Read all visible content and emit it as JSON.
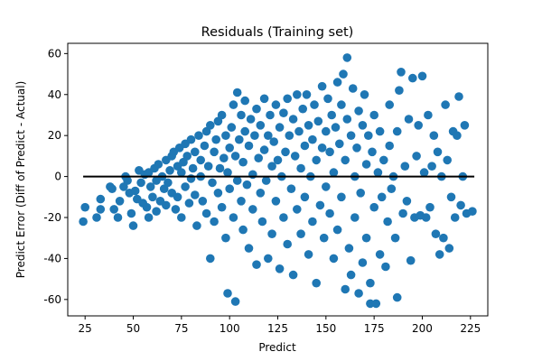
{
  "chart_data": {
    "type": "scatter",
    "title": "Residuals (Training set)",
    "xlabel": "Predict",
    "ylabel": "Predict Error (Diff of Predict - Actual)",
    "xlim": [
      16,
      234
    ],
    "ylim": [
      -68,
      65
    ],
    "xticks": [
      25,
      50,
      75,
      100,
      125,
      150,
      175,
      200,
      225
    ],
    "yticks": [
      -60,
      -40,
      -20,
      0,
      20,
      40,
      60
    ],
    "grid": false,
    "legend": "none",
    "marker_color": "#1f77b4",
    "reference_line": {
      "y": 0,
      "x_from": 24,
      "x_to": 227,
      "color": "#000000"
    },
    "series": [
      {
        "points": [
          [
            24,
            -22
          ],
          [
            25,
            -15
          ],
          [
            31,
            -20
          ],
          [
            33,
            -16
          ],
          [
            33,
            -11
          ],
          [
            38,
            -5
          ],
          [
            39,
            -6
          ],
          [
            40,
            -16
          ],
          [
            42,
            -20
          ],
          [
            43,
            -12
          ],
          [
            45,
            -5
          ],
          [
            46,
            0
          ],
          [
            47,
            -2
          ],
          [
            48,
            -8
          ],
          [
            49,
            -18
          ],
          [
            50,
            -24
          ],
          [
            51,
            -7
          ],
          [
            52,
            -11
          ],
          [
            53,
            3
          ],
          [
            54,
            -3
          ],
          [
            55,
            -13
          ],
          [
            56,
            1
          ],
          [
            57,
            -15
          ],
          [
            58,
            -20
          ],
          [
            58,
            2
          ],
          [
            59,
            -5
          ],
          [
            60,
            -10
          ],
          [
            61,
            4
          ],
          [
            62,
            -17
          ],
          [
            62,
            -2
          ],
          [
            63,
            6
          ],
          [
            64,
            -12
          ],
          [
            65,
            0
          ],
          [
            66,
            -6
          ],
          [
            67,
            8
          ],
          [
            67,
            -14
          ],
          [
            68,
            -3
          ],
          [
            69,
            3
          ],
          [
            70,
            10
          ],
          [
            70,
            -8
          ],
          [
            71,
            12
          ],
          [
            72,
            -16
          ],
          [
            73,
            5
          ],
          [
            73,
            -10
          ],
          [
            74,
            14
          ],
          [
            75,
            -20
          ],
          [
            75,
            2
          ],
          [
            76,
            7
          ],
          [
            77,
            -5
          ],
          [
            77,
            16
          ],
          [
            78,
            10
          ],
          [
            79,
            -13
          ],
          [
            80,
            18
          ],
          [
            80,
            -1
          ],
          [
            81,
            4
          ],
          [
            82,
            12
          ],
          [
            82,
            -9
          ],
          [
            83,
            -24
          ],
          [
            84,
            20
          ],
          [
            85,
            0
          ],
          [
            85,
            8
          ],
          [
            86,
            -12
          ],
          [
            87,
            15
          ],
          [
            88,
            -18
          ],
          [
            88,
            22
          ],
          [
            89,
            5
          ],
          [
            90,
            -40
          ],
          [
            90,
            25
          ],
          [
            91,
            -3
          ],
          [
            92,
            12
          ],
          [
            92,
            -22
          ],
          [
            93,
            18
          ],
          [
            94,
            27
          ],
          [
            94,
            -8
          ],
          [
            95,
            4
          ],
          [
            96,
            30
          ],
          [
            96,
            -15
          ],
          [
            97,
            9
          ],
          [
            98,
            -30
          ],
          [
            98,
            20
          ],
          [
            99,
            2
          ],
          [
            99,
            -57
          ],
          [
            100,
            14
          ],
          [
            100,
            -6
          ],
          [
            101,
            24
          ],
          [
            102,
            -20
          ],
          [
            102,
            35
          ],
          [
            103,
            10
          ],
          [
            103,
            -61
          ],
          [
            104,
            -2
          ],
          [
            104,
            41
          ],
          [
            105,
            18
          ],
          [
            106,
            -12
          ],
          [
            106,
            30
          ],
          [
            107,
            7
          ],
          [
            107,
            -26
          ],
          [
            108,
            22
          ],
          [
            108,
            37
          ],
          [
            109,
            -4
          ],
          [
            110,
            15
          ],
          [
            110,
            -35
          ],
          [
            111,
            28
          ],
          [
            112,
            1
          ],
          [
            112,
            -16
          ],
          [
            113,
            20
          ],
          [
            114,
            -43
          ],
          [
            114,
            33
          ],
          [
            115,
            9
          ],
          [
            116,
            -8
          ],
          [
            116,
            25
          ],
          [
            117,
            -22
          ],
          [
            118,
            13
          ],
          [
            118,
            38
          ],
          [
            119,
            -2
          ],
          [
            120,
            20
          ],
          [
            120,
            -40
          ],
          [
            121,
            30
          ],
          [
            122,
            5
          ],
          [
            122,
            -28
          ],
          [
            123,
            17
          ],
          [
            124,
            -12
          ],
          [
            124,
            35
          ],
          [
            125,
            8
          ],
          [
            126,
            -45
          ],
          [
            126,
            24
          ],
          [
            127,
            0
          ],
          [
            128,
            31
          ],
          [
            128,
            -20
          ],
          [
            129,
            12
          ],
          [
            130,
            38
          ],
          [
            130,
            -33
          ],
          [
            131,
            20
          ],
          [
            132,
            -6
          ],
          [
            133,
            28
          ],
          [
            133,
            -48
          ],
          [
            134,
            10
          ],
          [
            135,
            40
          ],
          [
            135,
            -16
          ],
          [
            136,
            22
          ],
          [
            137,
            -28
          ],
          [
            137,
            4
          ],
          [
            138,
            33
          ],
          [
            139,
            -10
          ],
          [
            139,
            15
          ],
          [
            140,
            40
          ],
          [
            141,
            -38
          ],
          [
            141,
            25
          ],
          [
            142,
            0
          ],
          [
            143,
            18
          ],
          [
            143,
            -22
          ],
          [
            144,
            35
          ],
          [
            145,
            -52
          ],
          [
            145,
            8
          ],
          [
            146,
            27
          ],
          [
            147,
            -14
          ],
          [
            148,
            44
          ],
          [
            148,
            14
          ],
          [
            149,
            -30
          ],
          [
            150,
            22
          ],
          [
            150,
            -5
          ],
          [
            151,
            38
          ],
          [
            152,
            -18
          ],
          [
            152,
            12
          ],
          [
            153,
            30
          ],
          [
            154,
            -40
          ],
          [
            154,
            2
          ],
          [
            155,
            24
          ],
          [
            156,
            -26
          ],
          [
            156,
            46
          ],
          [
            157,
            16
          ],
          [
            158,
            -10
          ],
          [
            158,
            35
          ],
          [
            159,
            50
          ],
          [
            160,
            -55
          ],
          [
            160,
            8
          ],
          [
            161,
            58
          ],
          [
            161,
            28
          ],
          [
            162,
            -35
          ],
          [
            163,
            20
          ],
          [
            163,
            -48
          ],
          [
            164,
            43
          ],
          [
            165,
            0
          ],
          [
            165,
            -20
          ],
          [
            166,
            14
          ],
          [
            167,
            -57
          ],
          [
            167,
            32
          ],
          [
            168,
            -8
          ],
          [
            169,
            25
          ],
          [
            169,
            -42
          ],
          [
            170,
            40
          ],
          [
            171,
            6
          ],
          [
            171,
            -30
          ],
          [
            172,
            20
          ],
          [
            173,
            -52
          ],
          [
            173,
            -62
          ],
          [
            174,
            12
          ],
          [
            175,
            -15
          ],
          [
            175,
            30
          ],
          [
            176,
            -62
          ],
          [
            177,
            2
          ],
          [
            178,
            -38
          ],
          [
            178,
            22
          ],
          [
            179,
            -10
          ],
          [
            180,
            8
          ],
          [
            181,
            -44
          ],
          [
            182,
            -22
          ],
          [
            183,
            35
          ],
          [
            183,
            15
          ],
          [
            184,
            -6
          ],
          [
            185,
            0
          ],
          [
            186,
            -30
          ],
          [
            187,
            22
          ],
          [
            187,
            -59
          ],
          [
            188,
            42
          ],
          [
            189,
            51
          ],
          [
            190,
            -18
          ],
          [
            191,
            5
          ],
          [
            192,
            -12
          ],
          [
            193,
            28
          ],
          [
            194,
            -41
          ],
          [
            195,
            48
          ],
          [
            196,
            -20
          ],
          [
            197,
            10
          ],
          [
            198,
            25
          ],
          [
            199,
            -19
          ],
          [
            200,
            49
          ],
          [
            201,
            2
          ],
          [
            202,
            -20
          ],
          [
            203,
            30
          ],
          [
            204,
            -15
          ],
          [
            205,
            5
          ],
          [
            206,
            20
          ],
          [
            207,
            -28
          ],
          [
            208,
            12
          ],
          [
            209,
            -38
          ],
          [
            210,
            0
          ],
          [
            211,
            -30
          ],
          [
            212,
            35
          ],
          [
            213,
            8
          ],
          [
            214,
            -35
          ],
          [
            215,
            -10
          ],
          [
            216,
            22
          ],
          [
            217,
            -20
          ],
          [
            218,
            20
          ],
          [
            219,
            39
          ],
          [
            220,
            -14
          ],
          [
            221,
            0
          ],
          [
            222,
            25
          ],
          [
            223,
            -18
          ],
          [
            226,
            -17
          ]
        ]
      }
    ]
  }
}
